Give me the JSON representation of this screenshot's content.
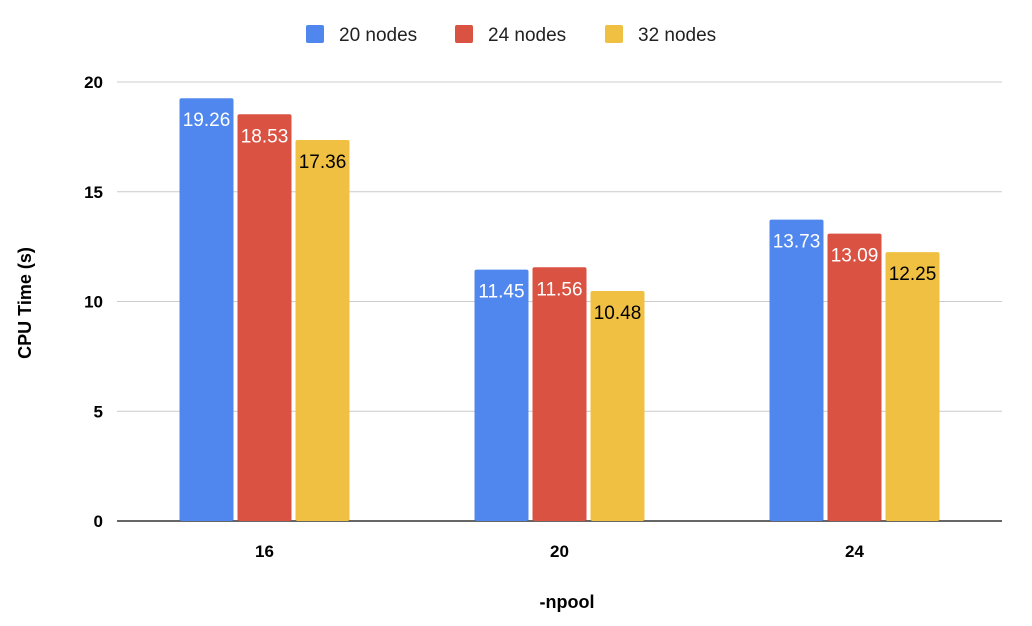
{
  "chart_data": {
    "type": "bar",
    "title": "",
    "xlabel": "-npool",
    "ylabel": "CPU Time (s)",
    "categories": [
      "16",
      "20",
      "24"
    ],
    "ylim": [
      0,
      20
    ],
    "yticks": [
      "0",
      "5",
      "10",
      "15",
      "20"
    ],
    "grid": true,
    "legend_position": "top",
    "series": [
      {
        "name": "20 nodes",
        "color": "#5087EE",
        "label_color": "#ffffff",
        "values": [
          19.26,
          11.45,
          13.73
        ],
        "labels": [
          "19.26",
          "11.45",
          "13.73"
        ]
      },
      {
        "name": "24 nodes",
        "color": "#D95242",
        "label_color": "#ffffff",
        "values": [
          18.53,
          11.56,
          13.09
        ],
        "labels": [
          "18.53",
          "11.56",
          "13.09"
        ]
      },
      {
        "name": "32 nodes",
        "color": "#F0C043",
        "label_color": "#000000",
        "values": [
          17.36,
          10.48,
          12.25
        ],
        "labels": [
          "17.36",
          "10.48",
          "12.25"
        ]
      }
    ]
  }
}
